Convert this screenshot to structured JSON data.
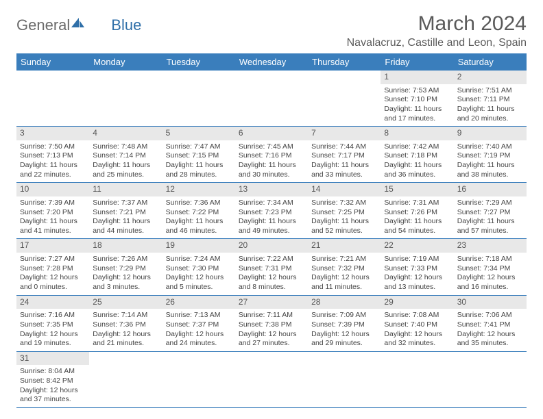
{
  "brand": {
    "part1": "General",
    "part2": "Blue"
  },
  "title": "March 2024",
  "location": "Navalacruz, Castille and Leon, Spain",
  "colors": {
    "header_bg": "#3a7ebc",
    "header_text": "#ffffff",
    "daynum_bg": "#e8e8e8",
    "row_border": "#3a7ebc",
    "brand_gray": "#6b6b6b",
    "brand_blue": "#2f6fa8",
    "text": "#444444"
  },
  "weekdays": [
    "Sunday",
    "Monday",
    "Tuesday",
    "Wednesday",
    "Thursday",
    "Friday",
    "Saturday"
  ],
  "weeks": [
    [
      null,
      null,
      null,
      null,
      null,
      {
        "n": "1",
        "sr": "Sunrise: 7:53 AM",
        "ss": "Sunset: 7:10 PM",
        "dl": "Daylight: 11 hours and 17 minutes."
      },
      {
        "n": "2",
        "sr": "Sunrise: 7:51 AM",
        "ss": "Sunset: 7:11 PM",
        "dl": "Daylight: 11 hours and 20 minutes."
      }
    ],
    [
      {
        "n": "3",
        "sr": "Sunrise: 7:50 AM",
        "ss": "Sunset: 7:13 PM",
        "dl": "Daylight: 11 hours and 22 minutes."
      },
      {
        "n": "4",
        "sr": "Sunrise: 7:48 AM",
        "ss": "Sunset: 7:14 PM",
        "dl": "Daylight: 11 hours and 25 minutes."
      },
      {
        "n": "5",
        "sr": "Sunrise: 7:47 AM",
        "ss": "Sunset: 7:15 PM",
        "dl": "Daylight: 11 hours and 28 minutes."
      },
      {
        "n": "6",
        "sr": "Sunrise: 7:45 AM",
        "ss": "Sunset: 7:16 PM",
        "dl": "Daylight: 11 hours and 30 minutes."
      },
      {
        "n": "7",
        "sr": "Sunrise: 7:44 AM",
        "ss": "Sunset: 7:17 PM",
        "dl": "Daylight: 11 hours and 33 minutes."
      },
      {
        "n": "8",
        "sr": "Sunrise: 7:42 AM",
        "ss": "Sunset: 7:18 PM",
        "dl": "Daylight: 11 hours and 36 minutes."
      },
      {
        "n": "9",
        "sr": "Sunrise: 7:40 AM",
        "ss": "Sunset: 7:19 PM",
        "dl": "Daylight: 11 hours and 38 minutes."
      }
    ],
    [
      {
        "n": "10",
        "sr": "Sunrise: 7:39 AM",
        "ss": "Sunset: 7:20 PM",
        "dl": "Daylight: 11 hours and 41 minutes."
      },
      {
        "n": "11",
        "sr": "Sunrise: 7:37 AM",
        "ss": "Sunset: 7:21 PM",
        "dl": "Daylight: 11 hours and 44 minutes."
      },
      {
        "n": "12",
        "sr": "Sunrise: 7:36 AM",
        "ss": "Sunset: 7:22 PM",
        "dl": "Daylight: 11 hours and 46 minutes."
      },
      {
        "n": "13",
        "sr": "Sunrise: 7:34 AM",
        "ss": "Sunset: 7:23 PM",
        "dl": "Daylight: 11 hours and 49 minutes."
      },
      {
        "n": "14",
        "sr": "Sunrise: 7:32 AM",
        "ss": "Sunset: 7:25 PM",
        "dl": "Daylight: 11 hours and 52 minutes."
      },
      {
        "n": "15",
        "sr": "Sunrise: 7:31 AM",
        "ss": "Sunset: 7:26 PM",
        "dl": "Daylight: 11 hours and 54 minutes."
      },
      {
        "n": "16",
        "sr": "Sunrise: 7:29 AM",
        "ss": "Sunset: 7:27 PM",
        "dl": "Daylight: 11 hours and 57 minutes."
      }
    ],
    [
      {
        "n": "17",
        "sr": "Sunrise: 7:27 AM",
        "ss": "Sunset: 7:28 PM",
        "dl": "Daylight: 12 hours and 0 minutes."
      },
      {
        "n": "18",
        "sr": "Sunrise: 7:26 AM",
        "ss": "Sunset: 7:29 PM",
        "dl": "Daylight: 12 hours and 3 minutes."
      },
      {
        "n": "19",
        "sr": "Sunrise: 7:24 AM",
        "ss": "Sunset: 7:30 PM",
        "dl": "Daylight: 12 hours and 5 minutes."
      },
      {
        "n": "20",
        "sr": "Sunrise: 7:22 AM",
        "ss": "Sunset: 7:31 PM",
        "dl": "Daylight: 12 hours and 8 minutes."
      },
      {
        "n": "21",
        "sr": "Sunrise: 7:21 AM",
        "ss": "Sunset: 7:32 PM",
        "dl": "Daylight: 12 hours and 11 minutes."
      },
      {
        "n": "22",
        "sr": "Sunrise: 7:19 AM",
        "ss": "Sunset: 7:33 PM",
        "dl": "Daylight: 12 hours and 13 minutes."
      },
      {
        "n": "23",
        "sr": "Sunrise: 7:18 AM",
        "ss": "Sunset: 7:34 PM",
        "dl": "Daylight: 12 hours and 16 minutes."
      }
    ],
    [
      {
        "n": "24",
        "sr": "Sunrise: 7:16 AM",
        "ss": "Sunset: 7:35 PM",
        "dl": "Daylight: 12 hours and 19 minutes."
      },
      {
        "n": "25",
        "sr": "Sunrise: 7:14 AM",
        "ss": "Sunset: 7:36 PM",
        "dl": "Daylight: 12 hours and 21 minutes."
      },
      {
        "n": "26",
        "sr": "Sunrise: 7:13 AM",
        "ss": "Sunset: 7:37 PM",
        "dl": "Daylight: 12 hours and 24 minutes."
      },
      {
        "n": "27",
        "sr": "Sunrise: 7:11 AM",
        "ss": "Sunset: 7:38 PM",
        "dl": "Daylight: 12 hours and 27 minutes."
      },
      {
        "n": "28",
        "sr": "Sunrise: 7:09 AM",
        "ss": "Sunset: 7:39 PM",
        "dl": "Daylight: 12 hours and 29 minutes."
      },
      {
        "n": "29",
        "sr": "Sunrise: 7:08 AM",
        "ss": "Sunset: 7:40 PM",
        "dl": "Daylight: 12 hours and 32 minutes."
      },
      {
        "n": "30",
        "sr": "Sunrise: 7:06 AM",
        "ss": "Sunset: 7:41 PM",
        "dl": "Daylight: 12 hours and 35 minutes."
      }
    ],
    [
      {
        "n": "31",
        "sr": "Sunrise: 8:04 AM",
        "ss": "Sunset: 8:42 PM",
        "dl": "Daylight: 12 hours and 37 minutes."
      },
      null,
      null,
      null,
      null,
      null,
      null
    ]
  ]
}
